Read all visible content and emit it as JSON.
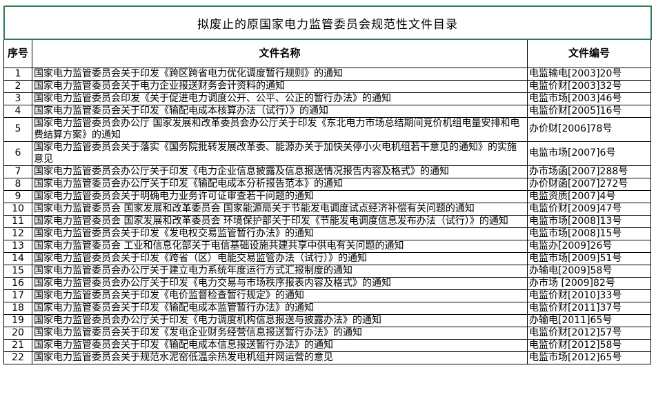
{
  "page": {
    "title": "拟废止的原国家电力监管委员会规范性文件目录"
  },
  "colors": {
    "title_border_green": "#2e7d4f",
    "table_border": "#000000",
    "background": "#ffffff",
    "text": "#000000"
  },
  "table": {
    "headers": {
      "seq": "序号",
      "name": "文件名称",
      "number": "文件编号"
    },
    "rows": [
      {
        "seq": "1",
        "name": "国家电力监管委员会关于印发《跨区跨省电力优化调度暂行规则》的通知",
        "number": "电监输电[2003]20号"
      },
      {
        "seq": "2",
        "name": "国家电力监管委员会关于电力企业报送财务会计资料的通知",
        "number": "电监价财[2003]32号"
      },
      {
        "seq": "3",
        "name": "国家电力监管委员会印发《关于促进电力调度公开、公平、公正的暂行办法》的通知",
        "number": "电监市场[2003]46号"
      },
      {
        "seq": "4",
        "name": "国家电力监管委员会关于印发《输配电成本核算办法（试行）》的通知",
        "number": "电监价财[2005]16号"
      },
      {
        "seq": "5",
        "name": "国家电力监管委员会办公厅 国家发展和改革委员会办公厅关于印发《东北电力市场总结期间竞价机组电量安排和电费结算方案》的通知",
        "number": "办价财[2006]78号"
      },
      {
        "seq": "6",
        "name": "国家电力监管委员会关于落实《国务院批转发展改革委、能源办关于加快关停小火电机组若干意见的通知》的实施意见",
        "number": "电监市场[2007]6号"
      },
      {
        "seq": "7",
        "name": "国家电力监管委员会办公厅关于印发《电力企业信息披露及信息报送情况报告内容及格式》的通知",
        "number": "办市场函[2007]288号"
      },
      {
        "seq": "8",
        "name": "国家电力监管委员会办公厅关于印发《输配电成本分析报告范本》的通知",
        "number": "办价财函[2007]272号"
      },
      {
        "seq": "9",
        "name": "国家电力监管委员会关于明确电力业务许可证审查若干问题的通知",
        "number": "电监资质[2007]4号"
      },
      {
        "seq": "10",
        "name": "国家电力监管委员会 国家发展和改革委员会 国家能源局关于节能发电调度试点经济补偿有关问题的通知",
        "number": "电监价财[2009]47号"
      },
      {
        "seq": "11",
        "name": "国家电力监管委员会 国家发展和改革委员会 环境保护部关于印发《节能发电调度信息发布办法（试行）》的通知",
        "number": "电监市场[2008]13号"
      },
      {
        "seq": "12",
        "name": "国家电力监管委员会关于印发《发电权交易监管暂行办法》的通知",
        "number": "电监市场[2008]15号"
      },
      {
        "seq": "13",
        "name": "国家电力监管委员会 工业和信息化部关于电信基础设施共建共享中供电有关问题的通知",
        "number": "电监办[2009]26号"
      },
      {
        "seq": "14",
        "name": "国家电力监管委员会关于印发《跨省（区）电能交易监管办法（试行）》的通知",
        "number": "电监市场[2009]51号"
      },
      {
        "seq": "15",
        "name": "国家电力监管委员会办公厅关于建立电力系统年度运行方式汇报制度的通知",
        "number": "办输电[2009]58号"
      },
      {
        "seq": "16",
        "name": "国家电力监管委员会办公厅关于印发《电力交易与市场秩序报表内容及格式》的通知",
        "number": "办市场 [2009]82号"
      },
      {
        "seq": "17",
        "name": "国家电力监管委员会关于印发《电价监督检查暂行规定》的通知",
        "number": "电监价财[2010]33号"
      },
      {
        "seq": "18",
        "name": "国家电力监管委员会关于印发《输配电成本监管暂行办法》的通知",
        "number": "电监价财[2011]37号"
      },
      {
        "seq": "19",
        "name": "国家电力监管委员会办公厅关于印发《电力调度机构信息报送与披露办法》的通知",
        "number": "办输电[2011]65号"
      },
      {
        "seq": "20",
        "name": "国家电力监管委员会关于印发《发电企业财务经营信息报送暂行办法》的通知",
        "number": "电监价财[2012]57号"
      },
      {
        "seq": "21",
        "name": "国家电力监管委员会关于印发《输配电成本信息报送暂行办法》的通知",
        "number": "电监价财[2012]58号"
      },
      {
        "seq": "22",
        "name": "国家电力监管委员会关于规范水泥窑低温余热发电机组并网运营的意见",
        "number": "电监市场[2012]65号"
      }
    ]
  }
}
